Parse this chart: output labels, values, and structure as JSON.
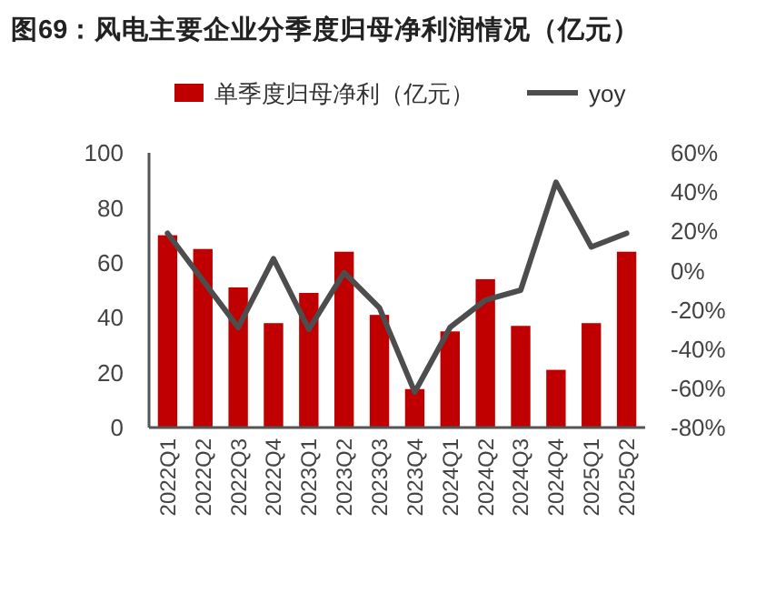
{
  "chart_data": {
    "type": "bar",
    "title": "图69：风电主要企业分季度归母净利润情况（亿元）",
    "categories": [
      "2022Q1",
      "2022Q2",
      "2022Q3",
      "2022Q4",
      "2023Q1",
      "2023Q2",
      "2023Q3",
      "2023Q4",
      "2024Q1",
      "2024Q2",
      "2024Q3",
      "2024Q4",
      "2025Q1",
      "2025Q2"
    ],
    "series": [
      {
        "name": "单季度归母净利（亿元）",
        "color": "#c00000",
        "values": [
          70,
          65,
          51,
          38,
          49,
          64,
          41,
          14,
          35,
          54,
          37,
          21,
          38,
          64
        ]
      },
      {
        "name": "yoy",
        "color": "#4d4d4d",
        "type": "line",
        "axis": "y2",
        "values": [
          19,
          -5,
          -29,
          6,
          -30,
          -1,
          -19,
          -62,
          -29,
          -15,
          -10,
          45,
          12,
          19
        ]
      }
    ],
    "ylim": [
      0,
      100
    ],
    "yticks": [
      0,
      20,
      40,
      60,
      80,
      100
    ],
    "y2lim": [
      -80,
      60
    ],
    "y2ticks": [
      {
        "value": -80,
        "label": "-80%"
      },
      {
        "value": -60,
        "label": "-60%"
      },
      {
        "value": -40,
        "label": "-40%"
      },
      {
        "value": -20,
        "label": "-20%"
      },
      {
        "value": 0,
        "label": "0%"
      },
      {
        "value": 20,
        "label": "20%"
      },
      {
        "value": 40,
        "label": "40%"
      },
      {
        "value": 60,
        "label": "60%"
      }
    ],
    "legend": "top",
    "grid": false,
    "marker": "none",
    "line_style": "solid"
  }
}
